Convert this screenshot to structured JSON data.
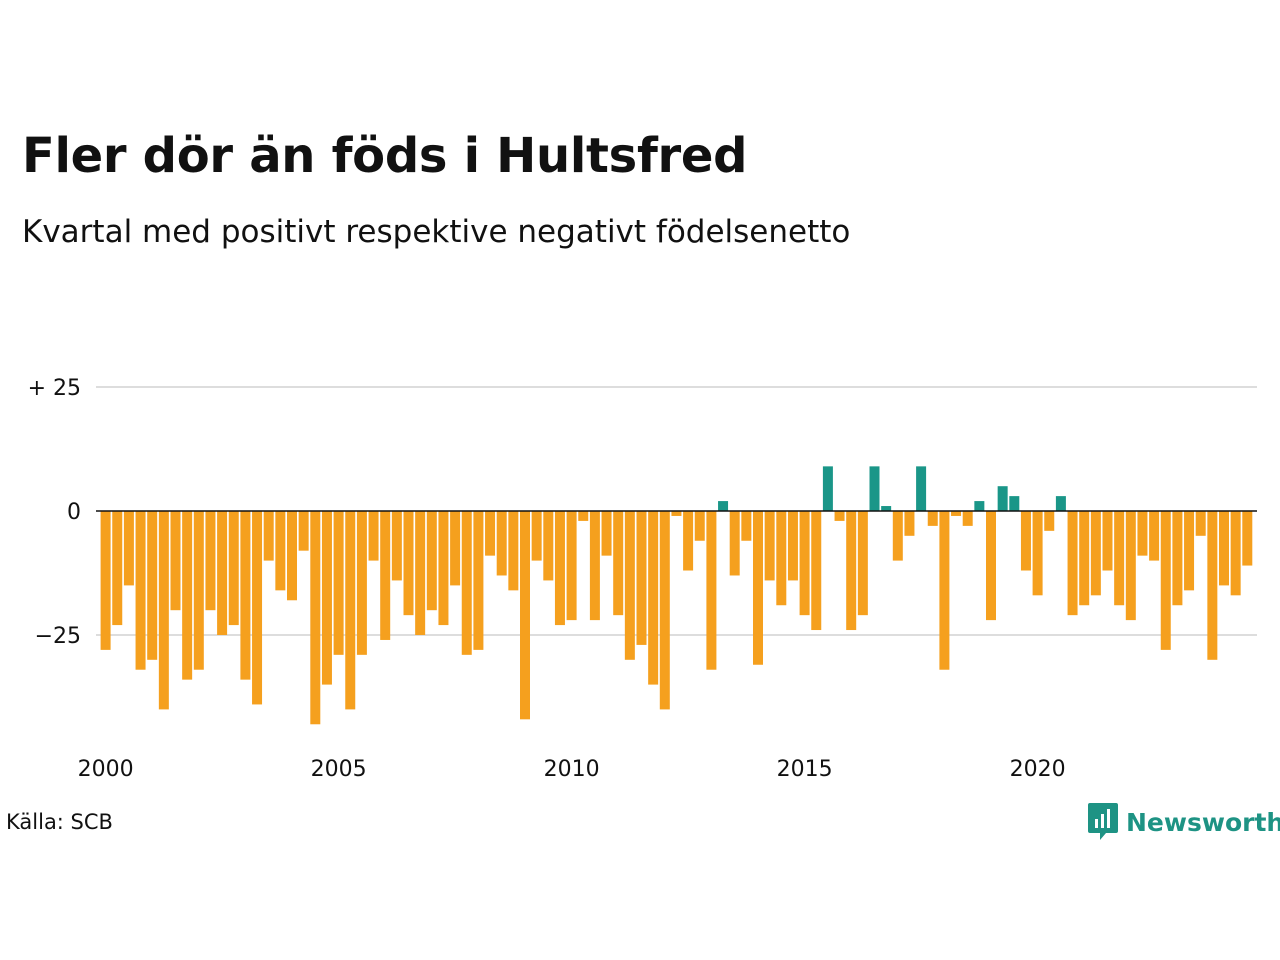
{
  "header": {
    "title": "Fler dör än föds i Hultsfred",
    "subtitle": "Kvartal med positivt respektive negativt födelsenetto"
  },
  "footer": {
    "source": "Källa: SCB",
    "brand": "Newsworthy",
    "brand_icon": "newsworthy-logo-icon"
  },
  "colors": {
    "positive": "#1a9688",
    "negative": "#f5a01e",
    "grid": "#dddddd",
    "axis": "#111111",
    "brand": "#1e9384"
  },
  "chart_data": {
    "type": "bar",
    "title": "Fler dör än föds i Hultsfred",
    "subtitle": "Kvartal med positivt respektive negativt födelsenetto",
    "xlabel": "",
    "ylabel": "",
    "x_start": "2000 Q1",
    "x_end": "2024 Q3",
    "quarters": 99,
    "ylim": [
      -45,
      30
    ],
    "yticks": [
      25,
      0,
      -25
    ],
    "ytick_labels": [
      "+ 25",
      "0",
      "−25"
    ],
    "xtick_labels": [
      "2000",
      "2005",
      "2010",
      "2015",
      "2020"
    ],
    "grid": true,
    "legend": "none",
    "values": [
      -28,
      -23,
      -15,
      -32,
      -30,
      -40,
      -20,
      -34,
      -32,
      -20,
      -25,
      -23,
      -34,
      -39,
      -10,
      -16,
      -18,
      -8,
      -43,
      -35,
      -29,
      -40,
      -29,
      -10,
      -26,
      -14,
      -21,
      -25,
      -20,
      -23,
      -15,
      -29,
      -28,
      -9,
      -13,
      -16,
      -42,
      -10,
      -14,
      -23,
      -22,
      -2,
      -22,
      -9,
      -21,
      -30,
      -27,
      -35,
      -40,
      -1,
      -12,
      -6,
      -32,
      2,
      -13,
      -6,
      -31,
      -14,
      -19,
      -14,
      -21,
      -24,
      9,
      -2,
      -24,
      -21,
      9,
      1,
      -10,
      -5,
      9,
      -3,
      -32,
      -1,
      -3,
      2,
      -22,
      5,
      3,
      -12,
      -17,
      -4,
      3,
      -21,
      -19,
      -17,
      -12,
      -19,
      -22,
      -9,
      -10,
      -28,
      -19,
      -16,
      -5,
      -30,
      -15,
      -17,
      -11
    ]
  }
}
